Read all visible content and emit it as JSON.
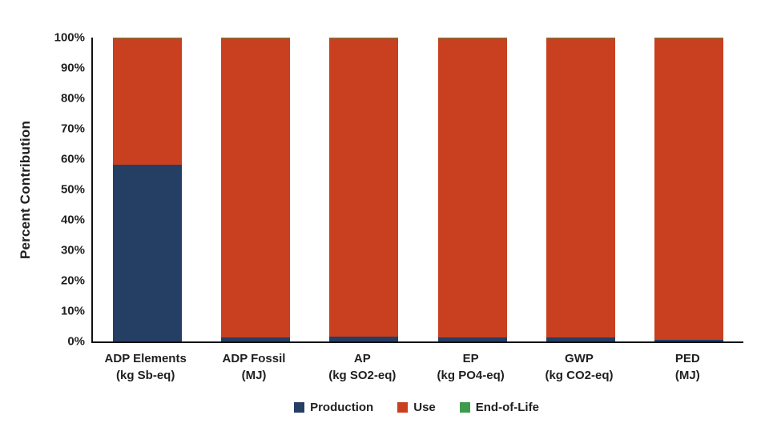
{
  "figure": {
    "background": "#ffffff",
    "axis_color": "#111111",
    "text_color": "#1f1f1f"
  },
  "chart_data": {
    "type": "bar",
    "stacked": true,
    "title": "",
    "xlabel": "",
    "ylabel": "Percent Contribution",
    "ylim": [
      0,
      100
    ],
    "grid": false,
    "legend_position": "bottom",
    "y_ticks": [
      "100%",
      "90%",
      "80%",
      "70%",
      "60%",
      "50%",
      "40%",
      "30%",
      "20%",
      "10%",
      "0%"
    ],
    "categories": [
      [
        "ADP Elements",
        "(kg Sb-eq)"
      ],
      [
        "ADP Fossil",
        "(MJ)"
      ],
      [
        "AP",
        "(kg SO2-eq)"
      ],
      [
        "EP",
        "(kg PO4-eq)"
      ],
      [
        "GWP",
        "(kg CO2-eq)"
      ],
      [
        "PED",
        "(MJ)"
      ]
    ],
    "series": [
      {
        "name": "Production",
        "color": "#253E64",
        "values": [
          58.2,
          1.2,
          1.7,
          1.3,
          1.3,
          0.6
        ]
      },
      {
        "name": "Use",
        "color": "#C8401F",
        "values": [
          41.5,
          98.5,
          98.0,
          98.4,
          98.4,
          99.1
        ]
      },
      {
        "name": "End-of-Life",
        "color": "#3E9B4E",
        "values": [
          0.3,
          0.3,
          0.3,
          0.3,
          0.3,
          0.3
        ]
      }
    ]
  }
}
